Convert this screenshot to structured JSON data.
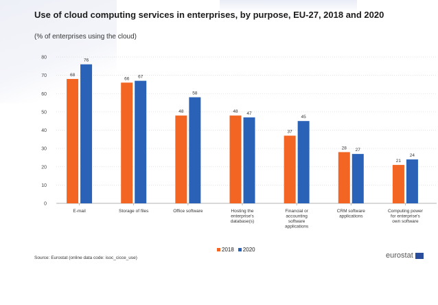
{
  "header": {
    "title": "Use of cloud computing services in enterprises, by purpose, EU-27, 2018 and 2020",
    "subtitle": "(% of enterprises using the cloud)"
  },
  "colors": {
    "series_2018": "#f26522",
    "series_2020": "#2a62b8",
    "grid": "#d9d9d9"
  },
  "chart_data": {
    "type": "bar",
    "categories": [
      "E-mail",
      "Storage of files",
      "Office software",
      "Hosting the enterprise's database(s)",
      "Financial or accounting software applications",
      "CRM software applications",
      "Computing power for enterprise's own software"
    ],
    "category_lines": [
      [
        "E-mail"
      ],
      [
        "Storage of files"
      ],
      [
        "Office software"
      ],
      [
        "Hosting the",
        "enterprise's",
        "database(s)"
      ],
      [
        "Financial or",
        "accounting",
        "software",
        "applications"
      ],
      [
        "CRM software",
        "applications"
      ],
      [
        "Computing power",
        "for enterprise's",
        "own software"
      ]
    ],
    "series": [
      {
        "name": "2018",
        "values": [
          68,
          66,
          48,
          48,
          37,
          28,
          21
        ]
      },
      {
        "name": "2020",
        "values": [
          76,
          67,
          58,
          47,
          45,
          27,
          24
        ]
      }
    ],
    "yticks": [
      0,
      10,
      20,
      30,
      40,
      50,
      60,
      70,
      80
    ],
    "ylim": [
      0,
      80
    ],
    "grid": true,
    "legend": "bottom-center"
  },
  "footer": {
    "source": "Source: Eurostat (online data code: isoc_cicce_use)",
    "logo": "eurostat"
  }
}
